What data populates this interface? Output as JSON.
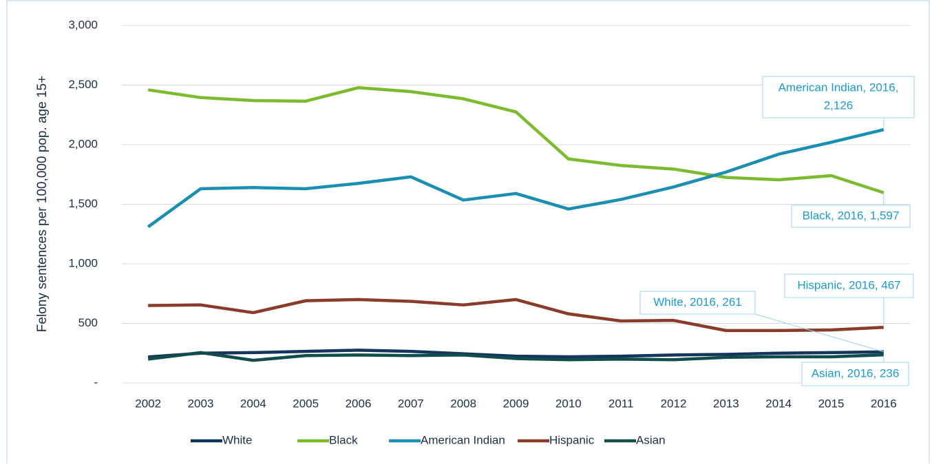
{
  "chart_data": {
    "type": "line",
    "y_label": "Felony sentences per 100,000 pop. age 15+",
    "categories": [
      "2002",
      "2003",
      "2004",
      "2005",
      "2006",
      "2007",
      "2008",
      "2009",
      "2010",
      "2011",
      "2012",
      "2013",
      "2014",
      "2015",
      "2016"
    ],
    "series": [
      {
        "name": "White",
        "color": "#15365c",
        "values": [
          218,
          250,
          255,
          265,
          275,
          265,
          245,
          225,
          220,
          225,
          235,
          240,
          250,
          255,
          261
        ]
      },
      {
        "name": "Black",
        "color": "#7cba2e",
        "values": [
          2460,
          2395,
          2370,
          2365,
          2478,
          2445,
          2385,
          2275,
          1880,
          1825,
          1795,
          1725,
          1705,
          1740,
          1597
        ]
      },
      {
        "name": "American Indian",
        "color": "#1a8fb2",
        "values": [
          1310,
          1630,
          1640,
          1630,
          1675,
          1730,
          1535,
          1590,
          1460,
          1540,
          1645,
          1770,
          1920,
          2020,
          2126
        ]
      },
      {
        "name": "Hispanic",
        "color": "#8a3b2a",
        "values": [
          650,
          655,
          590,
          690,
          700,
          685,
          655,
          700,
          580,
          520,
          525,
          440,
          440,
          445,
          467
        ]
      },
      {
        "name": "Asian",
        "color": "#104d4b",
        "values": [
          200,
          255,
          190,
          230,
          235,
          230,
          235,
          205,
          195,
          200,
          195,
          215,
          220,
          220,
          236
        ]
      }
    ],
    "ylim": [
      0,
      3000
    ],
    "yticks": [
      {
        "value": 0,
        "label": "-"
      },
      500,
      {
        "value": 1000,
        "label": "1,000"
      },
      {
        "value": 1500,
        "label": "1,500"
      },
      {
        "value": 2000,
        "label": "2,000"
      },
      {
        "value": 2500,
        "label": "2,500"
      },
      {
        "value": 3000,
        "label": "3,000"
      }
    ],
    "grid": true,
    "legend": "bottom",
    "annotations": [
      [
        "American Indian, 2016,",
        "2,126"
      ],
      [
        "Black, 2016,  1,597"
      ],
      [
        "Hispanic, 2016,  467"
      ],
      [
        "White, 2016,  261"
      ],
      [
        "Asian, 2016,  236"
      ]
    ]
  }
}
